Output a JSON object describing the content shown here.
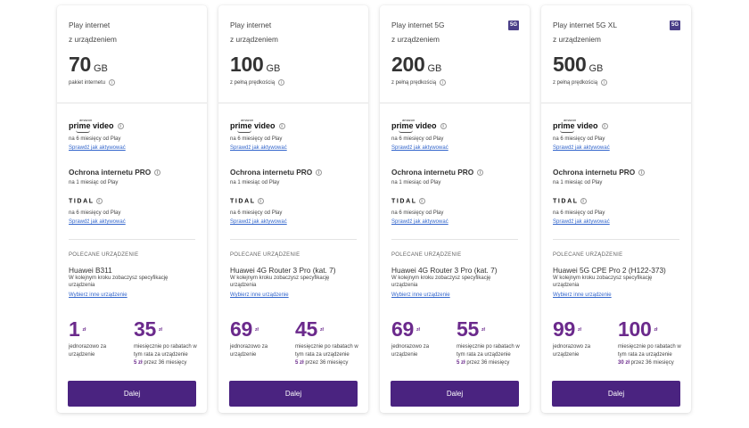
{
  "cards": [
    {
      "title": "Play internet\nz urządzeniem",
      "badge": "",
      "data_amount": "70",
      "data_unit": "GB",
      "speed_note": "pakiet internetu",
      "prime": {
        "top": "amazon",
        "main": "prime video",
        "period": "na 6 miesięcy od Play",
        "link": "Sprawdź jak aktywować"
      },
      "protection": {
        "title": "Ochrona internetu PRO",
        "period": "na 1 miesiąc od Play"
      },
      "tidal": {
        "name": "TIDAL",
        "period": "na 6 miesięcy od Play",
        "link": "Sprawdź jak aktywować"
      },
      "recommended_label": "POLECANE URZĄDZENIE",
      "device_name": "Huawei B311",
      "device_desc": "W kolejnym kroku zobaczysz specyfikację urządzenia",
      "device_link": "Wybierz inne urządzenie",
      "price_once": "1",
      "price_once_unit": "zł",
      "price_once_desc": "jednorazowo za urządzenie",
      "price_monthly": "35",
      "price_monthly_unit": "zł",
      "price_monthly_desc": "miesięcznie po rabatach w tym rata za urządzenie",
      "installment_amount": "5 zł",
      "installment_period": " przez 36 miesięcy",
      "cta": "Dalej"
    },
    {
      "title": "Play internet\nz urządzeniem",
      "badge": "",
      "data_amount": "100",
      "data_unit": "GB",
      "speed_note": "z pełną prędkością",
      "prime": {
        "top": "amazon",
        "main": "prime video",
        "period": "na 6 miesięcy od Play",
        "link": "Sprawdź jak aktywować"
      },
      "protection": {
        "title": "Ochrona internetu PRO",
        "period": "na 1 miesiąc od Play"
      },
      "tidal": {
        "name": "TIDAL",
        "period": "na 6 miesięcy od Play",
        "link": "Sprawdź jak aktywować"
      },
      "recommended_label": "POLECANE URZĄDZENIE",
      "device_name": "Huawei 4G Router 3 Pro (kat. 7)",
      "device_desc": "W kolejnym kroku zobaczysz specyfikację urządzenia",
      "device_link": "Wybierz inne urządzenie",
      "price_once": "69",
      "price_once_unit": "zł",
      "price_once_desc": "jednorazowo za urządzenie",
      "price_monthly": "45",
      "price_monthly_unit": "zł",
      "price_monthly_desc": "miesięcznie po rabatach w tym rata za urządzenie",
      "installment_amount": "5 zł",
      "installment_period": " przez 36 miesięcy",
      "cta": "Dalej"
    },
    {
      "title": "Play internet 5G\nz urządzeniem",
      "badge": "5G",
      "data_amount": "200",
      "data_unit": "GB",
      "speed_note": "z pełną prędkością",
      "prime": {
        "top": "amazon",
        "main": "prime video",
        "period": "na 6 miesięcy od Play",
        "link": "Sprawdź jak aktywować"
      },
      "protection": {
        "title": "Ochrona internetu PRO",
        "period": "na 1 miesiąc od Play"
      },
      "tidal": {
        "name": "TIDAL",
        "period": "na 6 miesięcy od Play",
        "link": "Sprawdź jak aktywować"
      },
      "recommended_label": "POLECANE URZĄDZENIE",
      "device_name": "Huawei 4G Router 3 Pro (kat. 7)",
      "device_desc": "W kolejnym kroku zobaczysz specyfikację urządzenia",
      "device_link": "Wybierz inne urządzenie",
      "price_once": "69",
      "price_once_unit": "zł",
      "price_once_desc": "jednorazowo za urządzenie",
      "price_monthly": "55",
      "price_monthly_unit": "zł",
      "price_monthly_desc": "miesięcznie po rabatach w tym rata za urządzenie",
      "installment_amount": "5 zł",
      "installment_period": " przez 36 miesięcy",
      "cta": "Dalej"
    },
    {
      "title": "Play internet 5G XL\nz urządzeniem",
      "badge": "5G",
      "data_amount": "500",
      "data_unit": "GB",
      "speed_note": "z pełną prędkością",
      "prime": {
        "top": "amazon",
        "main": "prime video",
        "period": "na 6 miesięcy od Play",
        "link": "Sprawdź jak aktywować"
      },
      "protection": {
        "title": "Ochrona internetu PRO",
        "period": "na 1 miesiąc od Play"
      },
      "tidal": {
        "name": "TIDAL",
        "period": "na 6 miesięcy od Play",
        "link": "Sprawdź jak aktywować"
      },
      "recommended_label": "POLECANE URZĄDZENIE",
      "device_name": "Huawei 5G CPE Pro 2 (H122-373)",
      "device_desc": "W kolejnym kroku zobaczysz specyfikację urządzenia",
      "device_link": "Wybierz inne urządzenie",
      "price_once": "99",
      "price_once_unit": "zł",
      "price_once_desc": "jednorazowo za urządzenie",
      "price_monthly": "100",
      "price_monthly_unit": "zł",
      "price_monthly_desc": "miesięcznie po rabatach w tym rata za urządzenie",
      "installment_amount": "30 zł",
      "installment_period": " przez 36 miesięcy",
      "cta": "Dalej"
    }
  ]
}
